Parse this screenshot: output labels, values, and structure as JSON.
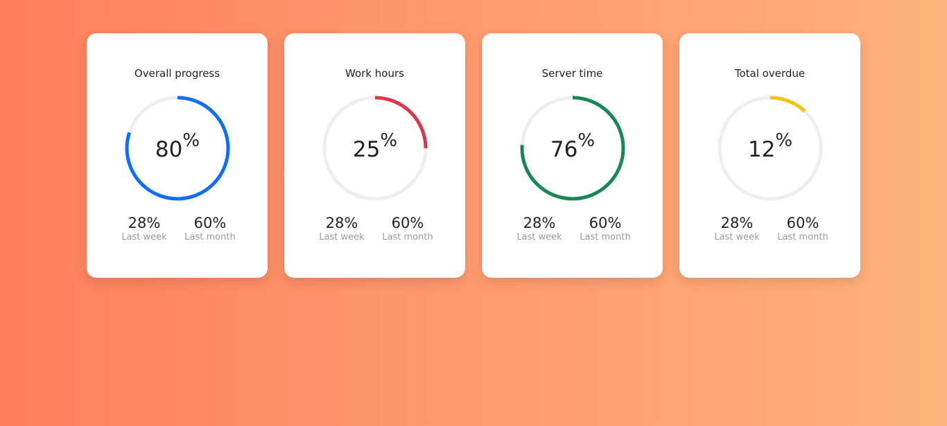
{
  "cards": [
    {
      "title": "Overall progress",
      "value": "80",
      "unit": "%",
      "progress": 0.8,
      "color": "#0d6efd",
      "stats": [
        {
          "value": "28%",
          "label": "Last week"
        },
        {
          "value": "60%",
          "label": "Last month"
        }
      ]
    },
    {
      "title": "Work hours",
      "value": "25",
      "unit": "%",
      "progress": 0.25,
      "color": "#dc3545",
      "stats": [
        {
          "value": "28%",
          "label": "Last week"
        },
        {
          "value": "60%",
          "label": "Last month"
        }
      ]
    },
    {
      "title": "Server time",
      "value": "76",
      "unit": "%",
      "progress": 0.76,
      "color": "#198754",
      "stats": [
        {
          "value": "28%",
          "label": "Last week"
        },
        {
          "value": "60%",
          "label": "Last month"
        }
      ]
    },
    {
      "title": "Total overdue",
      "value": "12",
      "unit": "%",
      "progress": 0.12,
      "color": "#ffc107",
      "stats": [
        {
          "value": "28%",
          "label": "Last week"
        },
        {
          "value": "60%",
          "label": "Last month"
        }
      ]
    }
  ],
  "track_color": "#eeeeee"
}
